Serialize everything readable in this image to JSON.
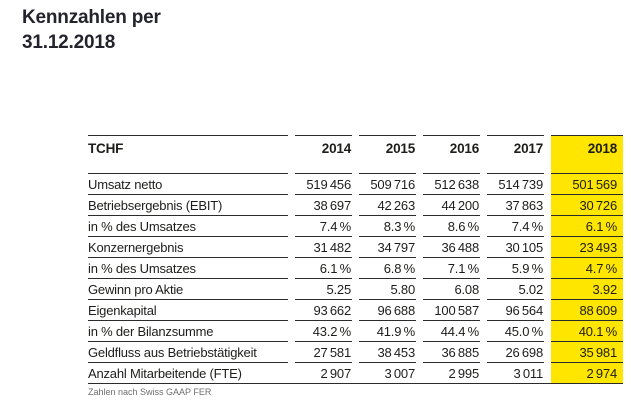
{
  "page": {
    "title_line1": "Kennzahlen per",
    "title_line2": "31.12.2018",
    "footnote": "Zahlen nach Swiss GAAP FER"
  },
  "colors": {
    "highlight_yellow": "#ffe600",
    "text": "#1d1d1b",
    "title": "#23232d",
    "rule_line": "#2b2b29",
    "footnote_gray": "#6e6e6e"
  },
  "table": {
    "highlighted_column": "2018",
    "header": [
      "TCHF",
      "2014",
      "2015",
      "2016",
      "2017",
      "2018"
    ],
    "rows": [
      {
        "label": "Umsatz netto",
        "values": [
          "519 456",
          "509 716",
          "512 638",
          "514 739",
          "501 569"
        ]
      },
      {
        "label": "Betriebsergebnis (EBIT)",
        "values": [
          "38 697",
          "42 263",
          "44 200",
          "37 863",
          "30 726"
        ]
      },
      {
        "label": "in % des Umsatzes",
        "values": [
          "7.4 %",
          "8.3 %",
          "8.6 %",
          "7.4 %",
          "6.1 %"
        ]
      },
      {
        "label": "Konzernergebnis",
        "values": [
          "31 482",
          "34 797",
          "36 488",
          "30 105",
          "23 493"
        ]
      },
      {
        "label": "in % des Umsatzes",
        "values": [
          "6.1 %",
          "6.8 %",
          "7.1 %",
          "5.9 %",
          "4.7 %"
        ]
      },
      {
        "label": "Gewinn pro Aktie",
        "values": [
          "5.25",
          "5.80",
          "6.08",
          "5.02",
          "3.92"
        ]
      },
      {
        "label": "Eigenkapital",
        "values": [
          "93 662",
          "96 688",
          "100 587",
          "96 564",
          "88 609"
        ]
      },
      {
        "label": "in % der Bilanzsumme",
        "values": [
          "43.2 %",
          "41.9 %",
          "44.4 %",
          "45.0 %",
          "40.1 %"
        ]
      },
      {
        "label": "Geldfluss aus Betriebstätigkeit",
        "values": [
          "27 581",
          "38 453",
          "36 885",
          "26 698",
          "35 981"
        ]
      },
      {
        "label": "Anzahl Mitarbeitende (FTE)",
        "values": [
          "2 907",
          "3 007",
          "2 995",
          "3 011",
          "2 974"
        ]
      }
    ]
  }
}
